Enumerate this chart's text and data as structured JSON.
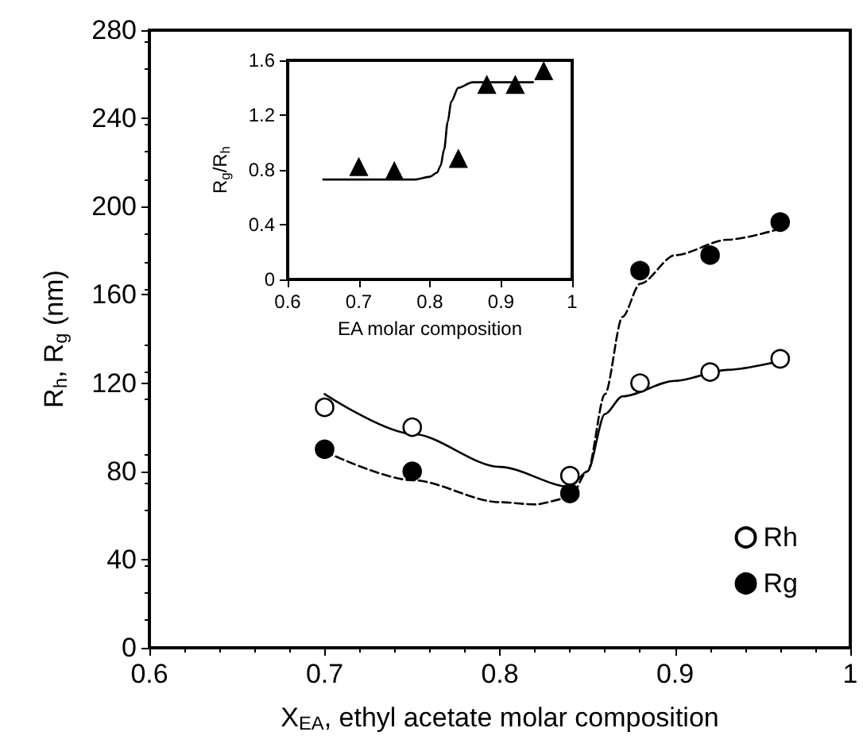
{
  "chart_data": [
    {
      "type": "scatter",
      "xlabel": "X$_{EA}$, ethyl acetate molar composition",
      "ylabel": "R$_{h}$, R$_{g}$ (nm)",
      "xlim": [
        0.6,
        1
      ],
      "xticks": [
        0.6,
        0.7,
        0.8,
        0.9,
        1
      ],
      "ylim": [
        0,
        280
      ],
      "yticks": [
        0,
        40,
        80,
        120,
        160,
        200,
        240,
        280
      ],
      "grid": false,
      "legend": "bottom right",
      "marker": "circle",
      "series": [
        {
          "name": "Rh",
          "color": "#ffffff",
          "x": [
            0.7,
            0.75,
            0.84,
            0.88,
            0.92,
            0.96
          ],
          "values": [
            109,
            100,
            78,
            120,
            125,
            131
          ]
        },
        {
          "name": "Rg",
          "color": "#000000",
          "x": [
            0.7,
            0.75,
            0.84,
            0.88,
            0.92,
            0.96
          ],
          "values": [
            90,
            80,
            70,
            171,
            178,
            193
          ]
        },
        {
          "type": "line",
          "color": "#000000",
          "marker": "none",
          "line_style": "solid",
          "x": [
            0.7,
            0.75,
            0.8,
            0.84,
            0.85,
            0.86,
            0.87,
            0.9,
            0.93,
            0.96
          ],
          "values": [
            115,
            97,
            82,
            73,
            80,
            106,
            114,
            121,
            126,
            130
          ]
        },
        {
          "type": "line",
          "color": "#000000",
          "marker": "none",
          "line_style": "dashed",
          "x": [
            0.7,
            0.75,
            0.8,
            0.82,
            0.84,
            0.85,
            0.86,
            0.87,
            0.88,
            0.9,
            0.93,
            0.96
          ],
          "values": [
            89,
            76,
            66,
            65,
            68,
            80,
            115,
            150,
            165,
            178,
            185,
            190
          ]
        }
      ]
    },
    {
      "type": "scatter",
      "xlabel": "EA molar composition",
      "ylabel": "R$_{g}$/R$_{h}$",
      "xlim": [
        0.6,
        1
      ],
      "xticks": [
        0.6,
        0.7,
        0.8,
        0.9,
        1
      ],
      "ylim": [
        0,
        1.6
      ],
      "yticks": [
        0,
        0.4,
        0.8,
        1.2,
        1.6
      ],
      "grid": false,
      "marker": "triangle",
      "series": [
        {
          "color": "#000000",
          "x": [
            0.7,
            0.75,
            0.84,
            0.88,
            0.92,
            0.96
          ],
          "values": [
            0.82,
            0.79,
            0.88,
            1.42,
            1.42,
            1.52
          ]
        },
        {
          "type": "line",
          "color": "#000000",
          "marker": "none",
          "line_style": "solid",
          "x": [
            0.65,
            0.72,
            0.78,
            0.8,
            0.81,
            0.815,
            0.82,
            0.825,
            0.83,
            0.84,
            0.86,
            0.9,
            0.945
          ],
          "values": [
            0.73,
            0.73,
            0.73,
            0.75,
            0.78,
            0.83,
            0.95,
            1.15,
            1.3,
            1.4,
            1.44,
            1.44,
            1.44
          ]
        }
      ]
    }
  ]
}
